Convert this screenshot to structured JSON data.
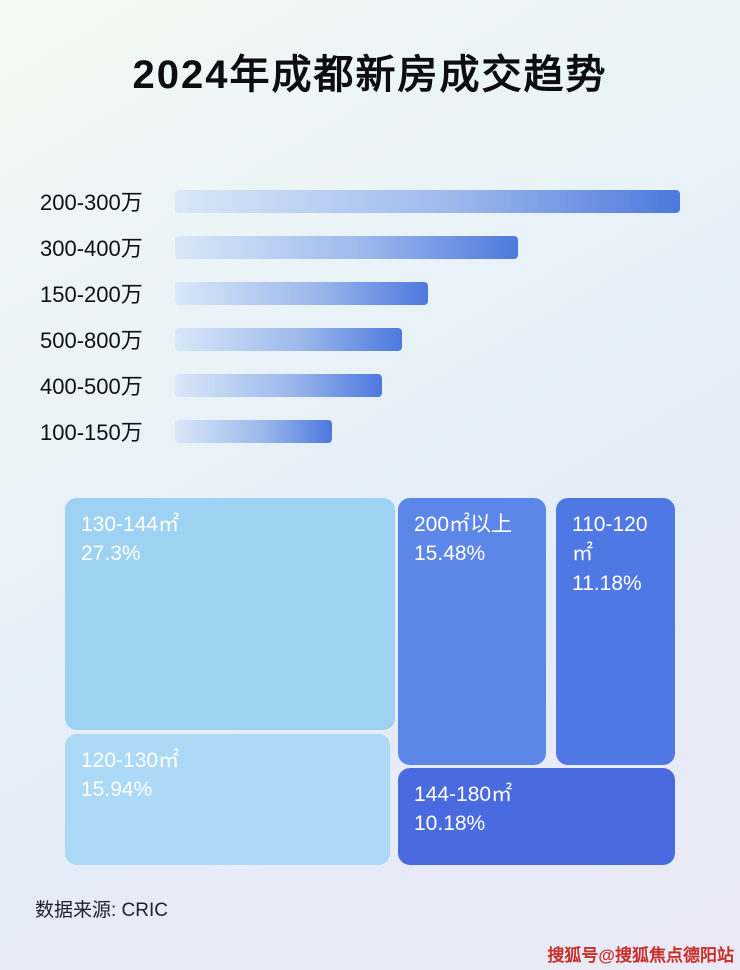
{
  "page": {
    "title": "2024年成都新房成交趋势",
    "source": "数据来源: CRIC",
    "watermark": "搜狐号@搜狐焦点德阳站"
  },
  "colors": {
    "bar_gradient_start": "#d9e7f8",
    "bar_gradient_end": "#4d79dd",
    "treemap_light_blue": "#9ed2f2",
    "treemap_mid_blue": "#5c86e8",
    "treemap_deep_blue": "#4a6be0",
    "watermark_red": "#c62f2a"
  },
  "chart_data": [
    {
      "type": "bar",
      "orientation": "horizontal",
      "title": "2024年成都新房成交趋势",
      "categories": [
        "200-300万",
        "300-400万",
        "150-200万",
        "500-800万",
        "400-500万",
        "100-150万"
      ],
      "values": [
        100,
        68,
        50,
        45,
        41,
        31
      ],
      "value_note": "no axis labels shown; values are relative bar lengths in % of longest bar",
      "xlim": [
        0,
        100
      ],
      "grid": false,
      "legend": false
    },
    {
      "type": "treemap",
      "title": "",
      "items": [
        {
          "label": "130-144㎡",
          "value": 27.3,
          "display": "27.3%"
        },
        {
          "label": "200㎡以上",
          "value": 15.48,
          "display": "15.48%"
        },
        {
          "label": "110-120㎡",
          "value": 11.18,
          "display": "11.18%"
        },
        {
          "label": "120-130㎡",
          "value": 15.94,
          "display": "15.94%"
        },
        {
          "label": "144-180㎡",
          "value": 10.18,
          "display": "10.18%"
        }
      ]
    }
  ]
}
